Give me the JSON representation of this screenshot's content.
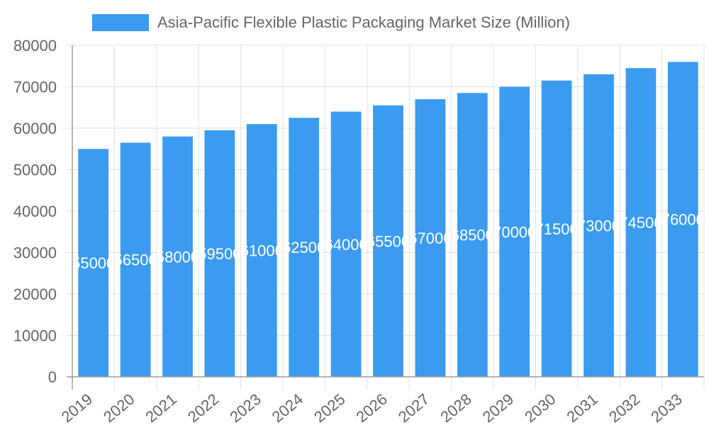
{
  "chart_data": {
    "type": "bar",
    "title": "",
    "legend": [
      "Asia-Pacific Flexible Plastic Packaging Market Size (Million)"
    ],
    "legend_position": "top",
    "categories": [
      "2019",
      "2020",
      "2021",
      "2022",
      "2023",
      "2024",
      "2025",
      "2026",
      "2027",
      "2028",
      "2029",
      "2030",
      "2031",
      "2032",
      "2033"
    ],
    "series": [
      {
        "name": "Asia-Pacific Flexible Plastic Packaging Market Size (Million)",
        "values": [
          55000,
          56500,
          58000,
          59500,
          61000,
          62500,
          64000,
          65500,
          67000,
          68500,
          70000,
          71500,
          73000,
          74500,
          76000
        ],
        "color": "#3a9bf0"
      }
    ],
    "xlabel": "",
    "ylabel": "",
    "ylim": [
      0,
      80000
    ],
    "yticks": [
      0,
      10000,
      20000,
      30000,
      40000,
      50000,
      60000,
      70000,
      80000
    ],
    "grid": true,
    "data_labels": true
  },
  "legend": {
    "label": "Asia-Pacific Flexible Plastic Packaging Market Size (Million)",
    "color": "#3a9bf0"
  }
}
